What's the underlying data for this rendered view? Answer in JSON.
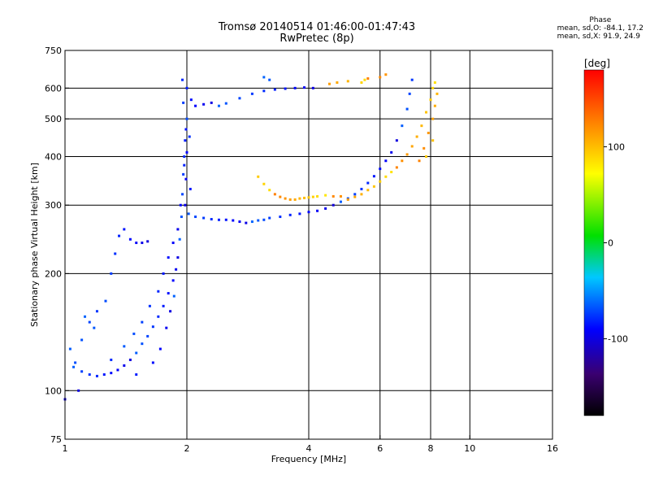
{
  "title": "Tromsø 20140514 01:46:00-01:47:43",
  "subtitle": "RwPretec (8p)",
  "phase_info": {
    "header": "Phase",
    "line_o": "mean, sd,O: -84.1, 17.2",
    "line_x": "mean, sd,X:  91.9, 24.9"
  },
  "colorbar": {
    "label": "[deg]",
    "range": [
      -180,
      180
    ],
    "ticks": [
      {
        "value": 100,
        "label": "100"
      },
      {
        "value": 0,
        "label": "0"
      },
      {
        "value": -100,
        "label": "-100"
      }
    ]
  },
  "chart_data": {
    "type": "scatter",
    "title": "Tromsø 20140514 01:46:00-01:47:43",
    "subtitle": "RwPretec (8p)",
    "xlabel": "Frequency [MHz]",
    "ylabel": "Stationary phase Virtual Height [km]",
    "xscale": "log",
    "yscale": "log",
    "xlim": [
      1,
      16
    ],
    "ylim": [
      75,
      750
    ],
    "x_ticks": [
      {
        "value": 1,
        "label": "1"
      },
      {
        "value": 2,
        "label": "2"
      },
      {
        "value": 4,
        "label": "4"
      },
      {
        "value": 6,
        "label": "6"
      },
      {
        "value": 8,
        "label": "8"
      },
      {
        "value": 10,
        "label": "10"
      },
      {
        "value": 16,
        "label": "16"
      }
    ],
    "y_ticks": [
      {
        "value": 75,
        "label": "75"
      },
      {
        "value": 100,
        "label": "100"
      },
      {
        "value": 200,
        "label": "200"
      },
      {
        "value": 300,
        "label": "300"
      },
      {
        "value": 400,
        "label": "400"
      },
      {
        "value": 500,
        "label": "500"
      },
      {
        "value": 600,
        "label": "600"
      },
      {
        "value": 750,
        "label": "750"
      }
    ],
    "x_grid": [
      2,
      4,
      6,
      8,
      10
    ],
    "y_grid": [
      100,
      200,
      300,
      400,
      500,
      600
    ],
    "grid": true,
    "color_variable": "phase [deg]",
    "series": [
      {
        "color_phase": -90,
        "points": [
          [
            1.0,
            95
          ],
          [
            1.03,
            128
          ],
          [
            1.06,
            118
          ],
          [
            1.1,
            112
          ],
          [
            1.15,
            110
          ],
          [
            1.2,
            109
          ],
          [
            1.25,
            110
          ],
          [
            1.3,
            111
          ],
          [
            1.35,
            113
          ],
          [
            1.4,
            116
          ],
          [
            1.45,
            120
          ],
          [
            1.5,
            125
          ],
          [
            1.55,
            132
          ],
          [
            1.6,
            138
          ],
          [
            1.65,
            146
          ],
          [
            1.7,
            155
          ],
          [
            1.75,
            165
          ],
          [
            1.8,
            178
          ],
          [
            1.85,
            192
          ],
          [
            1.88,
            205
          ],
          [
            1.9,
            220
          ],
          [
            1.92,
            245
          ],
          [
            1.94,
            280
          ],
          [
            1.95,
            320
          ],
          [
            1.96,
            360
          ],
          [
            1.97,
            400
          ],
          [
            1.98,
            440
          ],
          [
            1.99,
            470
          ],
          [
            2.0,
            410
          ],
          [
            1.99,
            350
          ],
          [
            1.98,
            300
          ],
          [
            1.12,
            155
          ],
          [
            1.18,
            145
          ],
          [
            1.26,
            170
          ],
          [
            1.3,
            200
          ],
          [
            1.33,
            225
          ],
          [
            1.36,
            250
          ],
          [
            1.4,
            260
          ],
          [
            1.45,
            245
          ],
          [
            1.5,
            240
          ],
          [
            1.55,
            240
          ],
          [
            1.6,
            242
          ],
          [
            1.4,
            130
          ],
          [
            1.48,
            140
          ],
          [
            1.55,
            150
          ],
          [
            1.62,
            165
          ],
          [
            1.7,
            180
          ],
          [
            1.75,
            200
          ],
          [
            1.8,
            220
          ],
          [
            1.85,
            240
          ],
          [
            1.9,
            260
          ],
          [
            1.08,
            100
          ],
          [
            1.05,
            115
          ],
          [
            1.1,
            135
          ],
          [
            1.15,
            150
          ],
          [
            1.2,
            160
          ],
          [
            1.3,
            120
          ],
          [
            1.5,
            110
          ],
          [
            1.65,
            118
          ],
          [
            1.72,
            128
          ],
          [
            1.78,
            145
          ],
          [
            1.82,
            160
          ],
          [
            1.86,
            175
          ],
          [
            2.02,
            285
          ],
          [
            2.1,
            280
          ],
          [
            2.2,
            278
          ],
          [
            2.3,
            276
          ],
          [
            2.4,
            275
          ],
          [
            2.5,
            275
          ],
          [
            2.6,
            274
          ],
          [
            2.7,
            272
          ],
          [
            2.8,
            270
          ],
          [
            2.9,
            272
          ],
          [
            3.0,
            274
          ],
          [
            3.1,
            275
          ],
          [
            3.2,
            278
          ],
          [
            3.4,
            280
          ],
          [
            3.6,
            283
          ],
          [
            3.8,
            285
          ],
          [
            4.0,
            288
          ],
          [
            4.2,
            290
          ],
          [
            4.4,
            294
          ],
          [
            4.6,
            300
          ],
          [
            4.8,
            306
          ],
          [
            5.0,
            312
          ],
          [
            5.2,
            320
          ],
          [
            5.4,
            330
          ],
          [
            5.6,
            342
          ],
          [
            5.8,
            356
          ],
          [
            6.0,
            372
          ],
          [
            6.2,
            390
          ],
          [
            6.4,
            410
          ],
          [
            6.6,
            440
          ],
          [
            6.8,
            480
          ],
          [
            7.0,
            530
          ],
          [
            7.1,
            580
          ],
          [
            7.2,
            630
          ],
          [
            1.95,
            630
          ],
          [
            2.0,
            600
          ],
          [
            2.05,
            560
          ],
          [
            2.1,
            540
          ],
          [
            2.2,
            545
          ],
          [
            2.3,
            550
          ],
          [
            2.4,
            540
          ],
          [
            2.5,
            548
          ],
          [
            2.7,
            565
          ],
          [
            2.9,
            580
          ],
          [
            3.1,
            590
          ],
          [
            3.3,
            595
          ],
          [
            3.5,
            598
          ],
          [
            3.7,
            600
          ],
          [
            3.9,
            602
          ],
          [
            4.1,
            600
          ],
          [
            3.1,
            640
          ],
          [
            3.2,
            630
          ],
          [
            2.0,
            500
          ],
          [
            1.96,
            550
          ],
          [
            2.03,
            450
          ],
          [
            1.97,
            380
          ],
          [
            2.04,
            330
          ],
          [
            1.93,
            300
          ]
        ]
      },
      {
        "color_phase": 100,
        "points": [
          [
            3.0,
            355
          ],
          [
            3.1,
            340
          ],
          [
            3.2,
            328
          ],
          [
            3.3,
            320
          ],
          [
            3.4,
            315
          ],
          [
            3.5,
            312
          ],
          [
            3.6,
            310
          ],
          [
            3.7,
            310
          ],
          [
            3.8,
            312
          ],
          [
            3.9,
            313
          ],
          [
            4.0,
            314
          ],
          [
            4.1,
            315
          ],
          [
            4.2,
            316
          ],
          [
            4.4,
            318
          ],
          [
            4.6,
            316
          ],
          [
            4.8,
            316
          ],
          [
            5.0,
            310
          ],
          [
            5.2,
            315
          ],
          [
            5.4,
            320
          ],
          [
            5.6,
            328
          ],
          [
            5.8,
            335
          ],
          [
            6.0,
            345
          ],
          [
            6.2,
            355
          ],
          [
            6.4,
            365
          ],
          [
            6.6,
            375
          ],
          [
            6.8,
            390
          ],
          [
            7.0,
            405
          ],
          [
            7.2,
            425
          ],
          [
            7.4,
            450
          ],
          [
            7.6,
            480
          ],
          [
            7.8,
            520
          ],
          [
            8.0,
            560
          ],
          [
            8.1,
            600
          ],
          [
            8.2,
            620
          ],
          [
            7.5,
            390
          ],
          [
            7.7,
            420
          ],
          [
            7.9,
            460
          ],
          [
            8.1,
            500
          ],
          [
            8.2,
            540
          ],
          [
            8.3,
            580
          ],
          [
            8.1,
            440
          ],
          [
            7.8,
            400
          ],
          [
            5.4,
            620
          ],
          [
            5.5,
            630
          ],
          [
            5.6,
            635
          ],
          [
            6.0,
            640
          ],
          [
            6.2,
            650
          ],
          [
            4.5,
            615
          ],
          [
            4.7,
            620
          ],
          [
            5.0,
            625
          ]
        ]
      }
    ]
  }
}
